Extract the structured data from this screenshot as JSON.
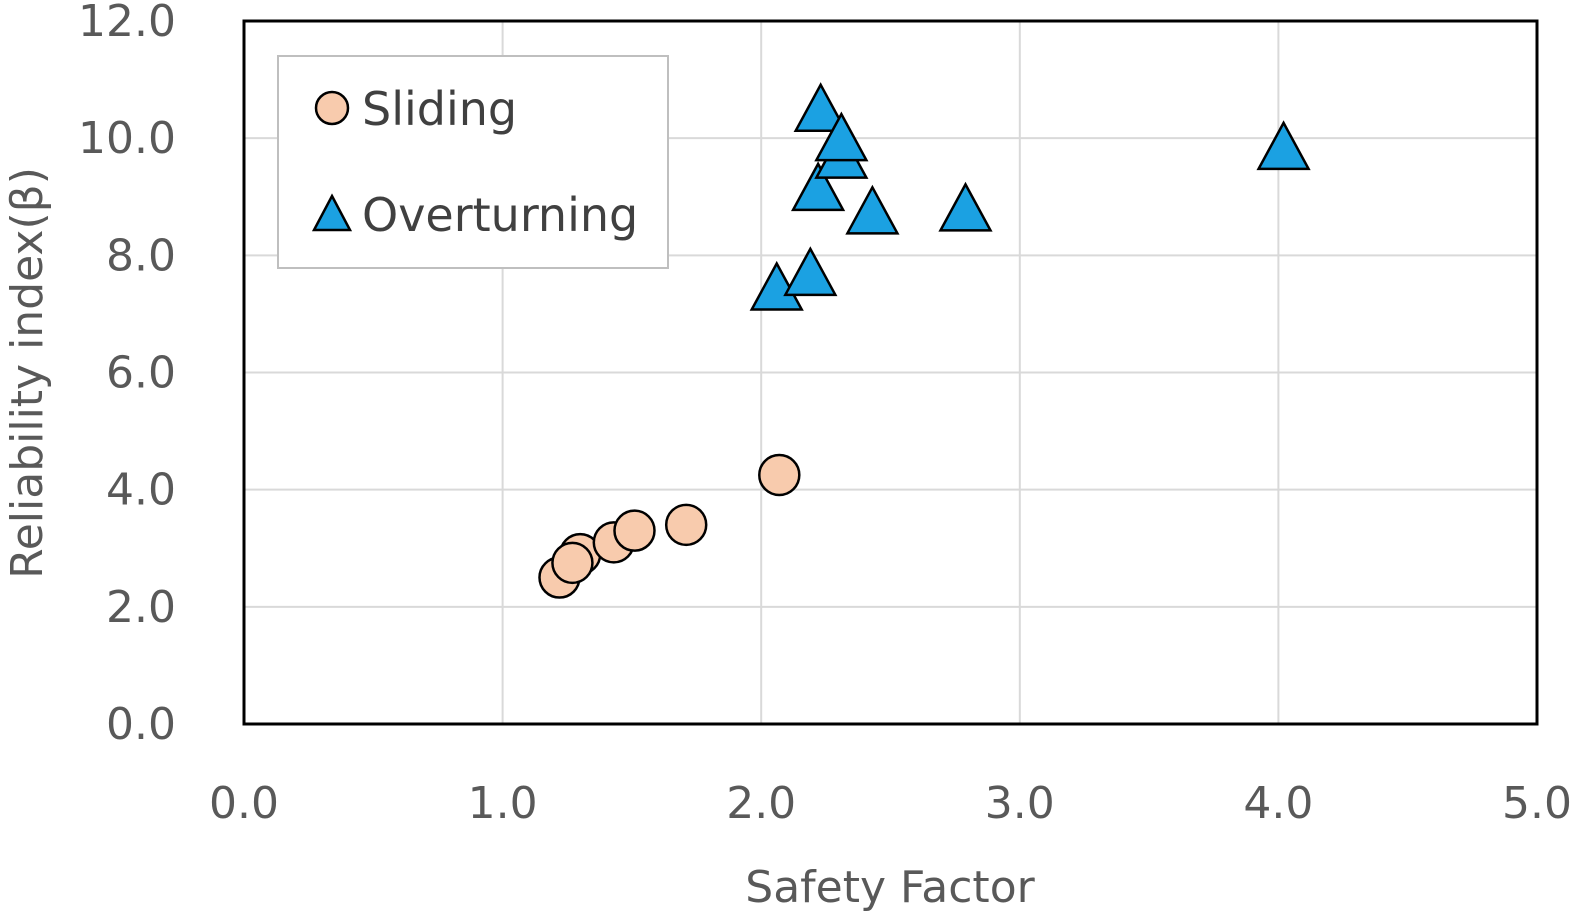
{
  "chart_data": {
    "type": "scatter",
    "xlabel": "Safety Factor",
    "ylabel": "Reliability index(β)",
    "xlim": [
      0,
      5
    ],
    "ylim": [
      0,
      12
    ],
    "x_ticks": [
      "0.0",
      "1.0",
      "2.0",
      "3.0",
      "4.0",
      "5.0"
    ],
    "y_ticks": [
      "0.0",
      "2.0",
      "4.0",
      "6.0",
      "8.0",
      "10.0",
      "12.0"
    ],
    "grid": true,
    "legend_position": "top-left",
    "series": [
      {
        "name": "Sliding",
        "marker": "circle",
        "color": "#f8cbad",
        "points": [
          {
            "x": 1.22,
            "y": 2.5
          },
          {
            "x": 1.3,
            "y": 2.9
          },
          {
            "x": 1.43,
            "y": 3.1
          },
          {
            "x": 1.51,
            "y": 3.3
          },
          {
            "x": 1.71,
            "y": 3.4
          },
          {
            "x": 2.07,
            "y": 4.25
          },
          {
            "x": 1.27,
            "y": 2.75
          }
        ]
      },
      {
        "name": "Overturning",
        "marker": "triangle",
        "color": "#1ba1e2",
        "points": [
          {
            "x": 2.06,
            "y": 7.4
          },
          {
            "x": 2.19,
            "y": 7.65
          },
          {
            "x": 2.22,
            "y": 9.1
          },
          {
            "x": 2.23,
            "y": 10.45
          },
          {
            "x": 2.31,
            "y": 9.65
          },
          {
            "x": 2.31,
            "y": 9.95
          },
          {
            "x": 2.43,
            "y": 8.7
          },
          {
            "x": 2.79,
            "y": 8.75
          },
          {
            "x": 4.02,
            "y": 9.8
          }
        ]
      }
    ]
  }
}
